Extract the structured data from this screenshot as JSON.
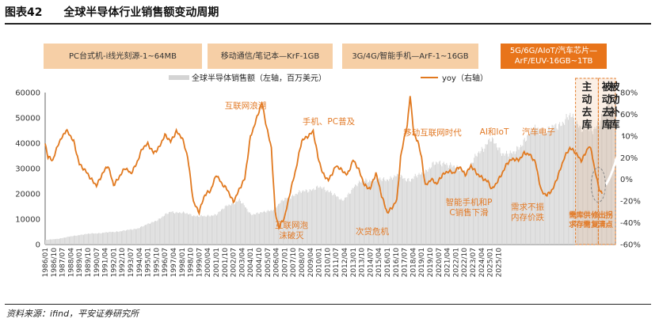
{
  "figure": {
    "label": "图表42",
    "title": "全球半导体行业销售额变动周期"
  },
  "source": "资料来源：ifind，平安证券研究所",
  "eras": [
    {
      "label": "PC台式机-i线光刻源-1~64MB"
    },
    {
      "label": "移动通信/笔记本—KrF-1GB"
    },
    {
      "label": "3G/4G/智能手机—ArF-1~16GB"
    },
    {
      "label": "5G/6G/AIoT/汽车芯片—ArF/EUV-16GB~1TB"
    }
  ],
  "colors": {
    "bar": "#d4d4d4",
    "line": "#e1791f",
    "annot": "#e27a27",
    "era": "#f6cfa6",
    "era_hot": "#e8741a"
  },
  "chart_data": {
    "type": "bar+line",
    "x_ticks": [
      "1986/01",
      "1986/10",
      "1987/07",
      "1988/04",
      "1989/01",
      "1989/10",
      "1990/07",
      "1991/04",
      "1992/01",
      "1992/10",
      "1993/07",
      "1994/04",
      "1995/01",
      "1995/10",
      "1996/07",
      "1997/04",
      "1998/01",
      "1998/10",
      "1999/07",
      "2000/04",
      "2001/01",
      "2001/10",
      "2002/07",
      "2003/04",
      "2004/01",
      "2004/10",
      "2005/07",
      "2006/04",
      "2007/01",
      "2007/10",
      "2008/07",
      "2009/04",
      "2010/01",
      "2010/10",
      "2011/07",
      "2012/04",
      "2013/01",
      "2013/10",
      "2014/07",
      "2015/04",
      "2016/01",
      "2016/10",
      "2017/07",
      "2018/04",
      "2019/01",
      "2019/10",
      "2020/07",
      "2021/04",
      "2022/01",
      "2022/10",
      "2023/07",
      "2024/04",
      "2025/01",
      "2025/10"
    ],
    "y_left": {
      "label": "全球半导体销售额（左轴，百万美元）",
      "ticks": [
        "0",
        "10000",
        "20000",
        "30000",
        "40000",
        "50000",
        "60000"
      ],
      "range": [
        0,
        60000
      ]
    },
    "y_right": {
      "label": "yoy（右轴）",
      "ticks": [
        "-60%",
        "-40%",
        "-20%",
        "0%",
        "20%",
        "40%",
        "60%",
        "80%"
      ],
      "range": [
        -60,
        80
      ]
    },
    "sales_anchors": [
      [
        0,
        1800
      ],
      [
        12,
        2200
      ],
      [
        24,
        3000
      ],
      [
        36,
        3800
      ],
      [
        48,
        4300
      ],
      [
        60,
        4600
      ],
      [
        72,
        5000
      ],
      [
        84,
        5500
      ],
      [
        96,
        6300
      ],
      [
        108,
        8000
      ],
      [
        120,
        10200
      ],
      [
        132,
        13000
      ],
      [
        144,
        12500
      ],
      [
        156,
        11500
      ],
      [
        168,
        11000
      ],
      [
        180,
        12000
      ],
      [
        192,
        15500
      ],
      [
        204,
        17500
      ],
      [
        216,
        12000
      ],
      [
        228,
        12500
      ],
      [
        240,
        14000
      ],
      [
        252,
        18000
      ],
      [
        264,
        20000
      ],
      [
        276,
        21500
      ],
      [
        288,
        22500
      ],
      [
        300,
        21000
      ],
      [
        312,
        17000
      ],
      [
        324,
        22500
      ],
      [
        336,
        25500
      ],
      [
        348,
        25500
      ],
      [
        360,
        26000
      ],
      [
        372,
        27000
      ],
      [
        384,
        25500
      ],
      [
        396,
        28000
      ],
      [
        408,
        31500
      ],
      [
        420,
        32500
      ],
      [
        432,
        30000
      ],
      [
        444,
        29000
      ],
      [
        456,
        36500
      ],
      [
        468,
        41500
      ],
      [
        480,
        36500
      ],
      [
        492,
        35500
      ],
      [
        504,
        41500
      ],
      [
        516,
        46000
      ],
      [
        528,
        44500
      ],
      [
        540,
        47500
      ],
      [
        552,
        50500
      ],
      [
        564,
        46500
      ],
      [
        576,
        44500
      ],
      [
        588,
        53000
      ],
      [
        600,
        55000
      ],
      [
        612,
        50000
      ]
    ],
    "yoy_anchors": [
      [
        0,
        33
      ],
      [
        3,
        20
      ],
      [
        8,
        17
      ],
      [
        14,
        34
      ],
      [
        22,
        45
      ],
      [
        30,
        35
      ],
      [
        36,
        15
      ],
      [
        42,
        8
      ],
      [
        48,
        0
      ],
      [
        54,
        -5
      ],
      [
        60,
        5
      ],
      [
        66,
        12
      ],
      [
        72,
        -5
      ],
      [
        78,
        3
      ],
      [
        84,
        10
      ],
      [
        90,
        5
      ],
      [
        96,
        15
      ],
      [
        102,
        28
      ],
      [
        108,
        32
      ],
      [
        114,
        25
      ],
      [
        120,
        30
      ],
      [
        126,
        40
      ],
      [
        132,
        35
      ],
      [
        138,
        45
      ],
      [
        144,
        38
      ],
      [
        150,
        20
      ],
      [
        156,
        -20
      ],
      [
        162,
        -30
      ],
      [
        168,
        -15
      ],
      [
        174,
        -10
      ],
      [
        180,
        5
      ],
      [
        186,
        -5
      ],
      [
        192,
        -10
      ],
      [
        198,
        -20
      ],
      [
        204,
        -10
      ],
      [
        210,
        0
      ],
      [
        216,
        40
      ],
      [
        222,
        55
      ],
      [
        228,
        70
      ],
      [
        233,
        48
      ],
      [
        238,
        30
      ],
      [
        242,
        -30
      ],
      [
        246,
        -45
      ],
      [
        252,
        -35
      ],
      [
        258,
        -10
      ],
      [
        264,
        10
      ],
      [
        270,
        35
      ],
      [
        276,
        40
      ],
      [
        282,
        45
      ],
      [
        287,
        20
      ],
      [
        292,
        5
      ],
      [
        298,
        0
      ],
      [
        306,
        12
      ],
      [
        312,
        8
      ],
      [
        318,
        5
      ],
      [
        324,
        18
      ],
      [
        330,
        8
      ],
      [
        336,
        -5
      ],
      [
        342,
        -8
      ],
      [
        348,
        5
      ],
      [
        354,
        -15
      ],
      [
        360,
        -30
      ],
      [
        366,
        -25
      ],
      [
        370,
        -20
      ],
      [
        374,
        20
      ],
      [
        378,
        40
      ],
      [
        381,
        50
      ],
      [
        384,
        78
      ],
      [
        388,
        40
      ],
      [
        392,
        35
      ],
      [
        396,
        20
      ],
      [
        400,
        -5
      ],
      [
        406,
        0
      ],
      [
        412,
        -5
      ],
      [
        418,
        5
      ],
      [
        424,
        8
      ],
      [
        430,
        5
      ],
      [
        436,
        12
      ],
      [
        442,
        5
      ],
      [
        448,
        12
      ],
      [
        454,
        5
      ],
      [
        460,
        2
      ],
      [
        466,
        -2
      ],
      [
        470,
        -10
      ],
      [
        474,
        -5
      ],
      [
        480,
        5
      ],
      [
        486,
        15
      ],
      [
        492,
        18
      ],
      [
        498,
        18
      ],
      [
        504,
        25
      ],
      [
        510,
        22
      ],
      [
        516,
        15
      ],
      [
        522,
        -10
      ],
      [
        528,
        -15
      ],
      [
        534,
        -10
      ],
      [
        540,
        5
      ],
      [
        546,
        20
      ],
      [
        552,
        28
      ],
      [
        558,
        25
      ],
      [
        564,
        18
      ],
      [
        568,
        23
      ],
      [
        572,
        30
      ],
      [
        575,
        25
      ],
      [
        578,
        10
      ],
      [
        582,
        -5
      ],
      [
        584,
        -10
      ],
      [
        586,
        -13
      ]
    ],
    "annotations": [
      {
        "text": "互联网浪潮"
      },
      {
        "text": "手机、PC普及"
      },
      {
        "text": "移动互联网时代"
      },
      {
        "text": "AI和IoT"
      },
      {
        "text": "汽车电子"
      },
      {
        "text": "互联网泡沫破灭"
      },
      {
        "text": "次贷危机"
      },
      {
        "text": "智能手机和PC销售下滑"
      },
      {
        "text": "需求不振内存价跌"
      },
      {
        "text": "需求库存供需"
      },
      {
        "text": "修复出清拐点"
      }
    ],
    "phases": [
      {
        "text": "主动去库"
      },
      {
        "text": "被动去库"
      },
      {
        "text": "被动补库"
      }
    ]
  }
}
